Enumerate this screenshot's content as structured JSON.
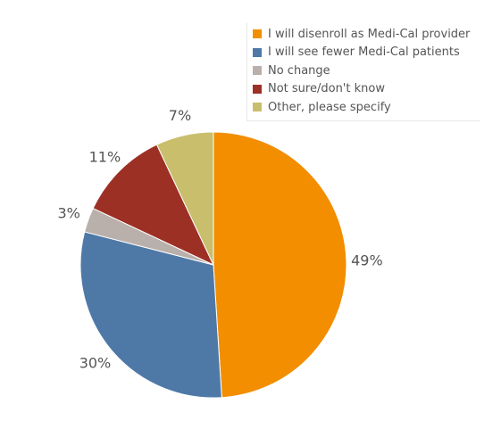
{
  "chart_data": {
    "type": "pie",
    "categories": [
      "I will disenroll as Medi-Cal provider",
      "I will see fewer Medi-Cal patients",
      "No change",
      "Not sure/don't know",
      "Other, please specify"
    ],
    "values": [
      49,
      30,
      3,
      11,
      7
    ],
    "value_labels": [
      "49%",
      "30%",
      "3%",
      "11%",
      "7%"
    ],
    "colors": [
      "#f28e00",
      "#4e79a7",
      "#bab0ab",
      "#9d3025",
      "#c9be6c"
    ],
    "legend_position": "top-right",
    "title": ""
  }
}
